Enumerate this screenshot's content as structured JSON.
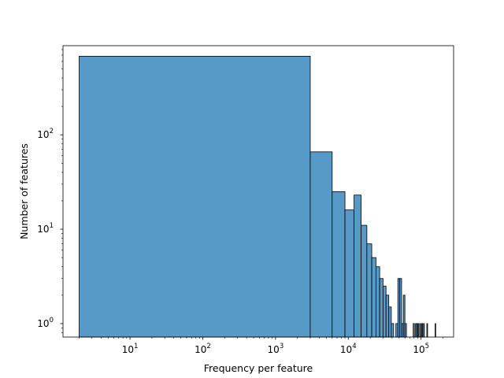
{
  "chart_data": {
    "type": "bar",
    "title": "",
    "xlabel": "Frequency per feature",
    "ylabel": "Number of features",
    "x_scale": "log",
    "y_scale": "log",
    "xlim": [
      1.2,
      280000
    ],
    "ylim": [
      0.72,
      880
    ],
    "x_ticks": [
      {
        "value": 10,
        "base": "10",
        "exp": "1"
      },
      {
        "value": 100,
        "base": "10",
        "exp": "2"
      },
      {
        "value": 1000,
        "base": "10",
        "exp": "3"
      },
      {
        "value": 10000,
        "base": "10",
        "exp": "4"
      },
      {
        "value": 100000,
        "base": "10",
        "exp": "5"
      }
    ],
    "y_ticks": [
      {
        "value": 1,
        "base": "10",
        "exp": "0"
      },
      {
        "value": 10,
        "base": "10",
        "exp": "1"
      },
      {
        "value": 100,
        "base": "10",
        "exp": "2"
      }
    ],
    "grid": false,
    "bar_color": "#5799c7",
    "edge_color": "#000000",
    "bins": [
      {
        "x0": 2,
        "x1": 3000,
        "count": 680
      },
      {
        "x0": 3000,
        "x1": 6000,
        "count": 66
      },
      {
        "x0": 6000,
        "x1": 9000,
        "count": 25
      },
      {
        "x0": 9000,
        "x1": 12000,
        "count": 16
      },
      {
        "x0": 12000,
        "x1": 15000,
        "count": 23
      },
      {
        "x0": 15000,
        "x1": 18000,
        "count": 11
      },
      {
        "x0": 18000,
        "x1": 21000,
        "count": 7
      },
      {
        "x0": 21000,
        "x1": 24000,
        "count": 5
      },
      {
        "x0": 24000,
        "x1": 27000,
        "count": 4
      },
      {
        "x0": 27000,
        "x1": 30000,
        "count": 3
      },
      {
        "x0": 30000,
        "x1": 33000,
        "count": 2.5
      },
      {
        "x0": 33000,
        "x1": 36000,
        "count": 2
      },
      {
        "x0": 36000,
        "x1": 39000,
        "count": 1.5
      },
      {
        "x0": 39000,
        "x1": 42000,
        "count": 1
      },
      {
        "x0": 45000,
        "x1": 48000,
        "count": 1
      },
      {
        "x0": 48000,
        "x1": 51000,
        "count": 3
      },
      {
        "x0": 51000,
        "x1": 54000,
        "count": 3
      },
      {
        "x0": 54000,
        "x1": 57000,
        "count": 1
      },
      {
        "x0": 57000,
        "x1": 60000,
        "count": 2
      },
      {
        "x0": 60000,
        "x1": 63000,
        "count": 1
      },
      {
        "x0": 78000,
        "x1": 81000,
        "count": 1
      },
      {
        "x0": 84000,
        "x1": 87000,
        "count": 1
      },
      {
        "x0": 87000,
        "x1": 90000,
        "count": 1
      },
      {
        "x0": 90000,
        "x1": 93000,
        "count": 1
      },
      {
        "x0": 96000,
        "x1": 99000,
        "count": 1
      },
      {
        "x0": 102000,
        "x1": 105000,
        "count": 1
      },
      {
        "x0": 108000,
        "x1": 111000,
        "count": 1
      },
      {
        "x0": 120000,
        "x1": 123000,
        "count": 1
      },
      {
        "x0": 156000,
        "x1": 159000,
        "count": 1
      }
    ]
  }
}
